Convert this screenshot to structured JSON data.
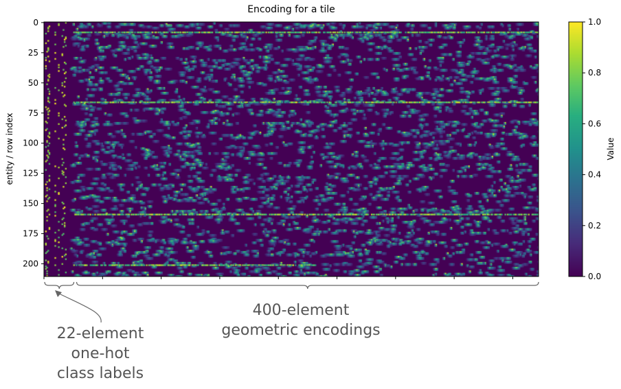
{
  "chart_data": {
    "type": "heatmap",
    "title": "Encoding for a tile",
    "ylabel": "entity / row index",
    "colorbar": {
      "label": "Value",
      "range": [
        0.0,
        1.0
      ],
      "ticks": [
        "0.0",
        "0.2",
        "0.4",
        "0.6",
        "0.8",
        "1.0"
      ],
      "colormap": "viridis"
    },
    "y_range": [
      0,
      210
    ],
    "y_ticks": [
      "0",
      "25",
      "50",
      "75",
      "100",
      "125",
      "150",
      "175",
      "200"
    ],
    "x_range": [
      0,
      422
    ],
    "n_columns": 422,
    "n_rows": 211,
    "bright_rows": [
      8,
      66,
      159,
      201
    ],
    "groups": [
      {
        "columns": 22,
        "label_line1": "22-element",
        "label_line2": "one-hot",
        "label_line3": "class labels"
      },
      {
        "columns": 400,
        "label_line1": "400-element",
        "label_line2": "geometric encodings"
      }
    ]
  },
  "colors": {
    "background": "#ffffff",
    "annotation_text": "#555555",
    "viridis_low": "#440154",
    "viridis_high": "#fde725"
  }
}
